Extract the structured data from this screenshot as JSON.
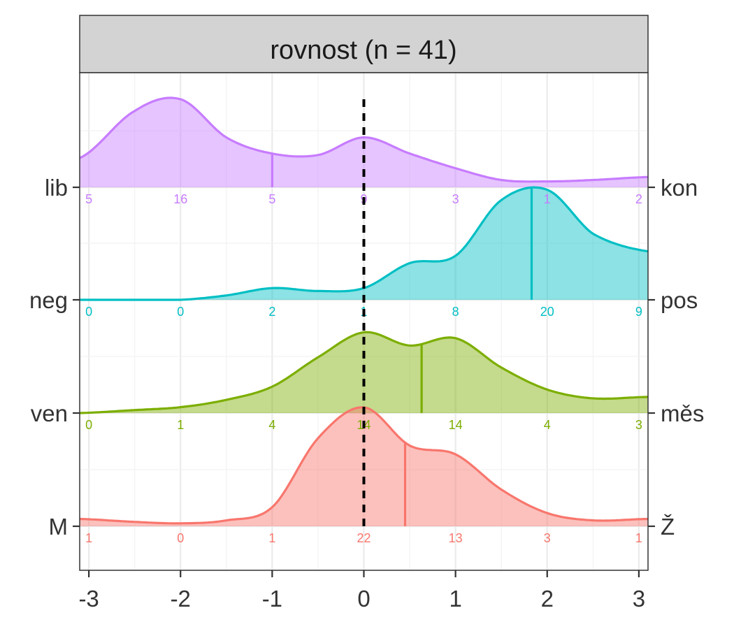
{
  "chart_data": {
    "type": "ridgeline-density",
    "title": "rovnost (n = 41)",
    "xlim": [
      -3.1,
      3.1
    ],
    "x_ticks": [
      -3,
      -2,
      -1,
      0,
      1,
      2,
      3
    ],
    "x_tick_labels": [
      "-3",
      "-2",
      "-1",
      "0",
      "1",
      "2",
      "3"
    ],
    "reference_line_x": 0,
    "grid": true,
    "rows": [
      {
        "left_label": "lib",
        "right_label": "kon",
        "color": "#C77CFF",
        "mean": -1.0,
        "counts": [
          5,
          16,
          5,
          9,
          3,
          1,
          2
        ],
        "density_x": [
          -3.1,
          -2.5,
          -2.0,
          -1.5,
          -1.0,
          -0.5,
          0.0,
          0.5,
          1.0,
          1.5,
          2.0,
          2.5,
          3.1
        ],
        "density_y": [
          0.2,
          0.52,
          0.6,
          0.34,
          0.23,
          0.22,
          0.34,
          0.23,
          0.13,
          0.05,
          0.04,
          0.05,
          0.07
        ]
      },
      {
        "left_label": "neg",
        "right_label": "pos",
        "color": "#00BFC4",
        "mean": 1.83,
        "counts": [
          0,
          0,
          2,
          1,
          8,
          20,
          9
        ],
        "density_x": [
          -3.1,
          -2.5,
          -2.0,
          -1.5,
          -1.0,
          -0.5,
          0.0,
          0.5,
          1.0,
          1.5,
          2.0,
          2.5,
          3.1
        ],
        "density_y": [
          0.0,
          0.0,
          0.0,
          0.03,
          0.08,
          0.06,
          0.08,
          0.25,
          0.3,
          0.68,
          0.75,
          0.45,
          0.33
        ]
      },
      {
        "left_label": "ven",
        "right_label": "měs",
        "color": "#7CAE00",
        "mean": 0.63,
        "counts": [
          0,
          1,
          4,
          14,
          14,
          4,
          3
        ],
        "density_x": [
          -3.1,
          -2.5,
          -2.0,
          -1.5,
          -1.0,
          -0.5,
          0.0,
          0.5,
          1.0,
          1.5,
          2.0,
          2.5,
          3.1
        ],
        "density_y": [
          0.0,
          0.02,
          0.04,
          0.09,
          0.18,
          0.38,
          0.55,
          0.46,
          0.51,
          0.31,
          0.16,
          0.1,
          0.11
        ]
      },
      {
        "left_label": "M",
        "right_label": "Ž",
        "color": "#F8766D",
        "mean": 0.45,
        "counts": [
          1,
          0,
          1,
          22,
          13,
          3,
          1
        ],
        "density_x": [
          -3.1,
          -2.5,
          -2.0,
          -1.5,
          -1.0,
          -0.5,
          0.0,
          0.5,
          1.0,
          1.5,
          2.0,
          2.5,
          3.1
        ],
        "density_y": [
          0.05,
          0.03,
          0.02,
          0.04,
          0.13,
          0.6,
          0.81,
          0.55,
          0.49,
          0.25,
          0.09,
          0.04,
          0.05
        ]
      }
    ]
  }
}
